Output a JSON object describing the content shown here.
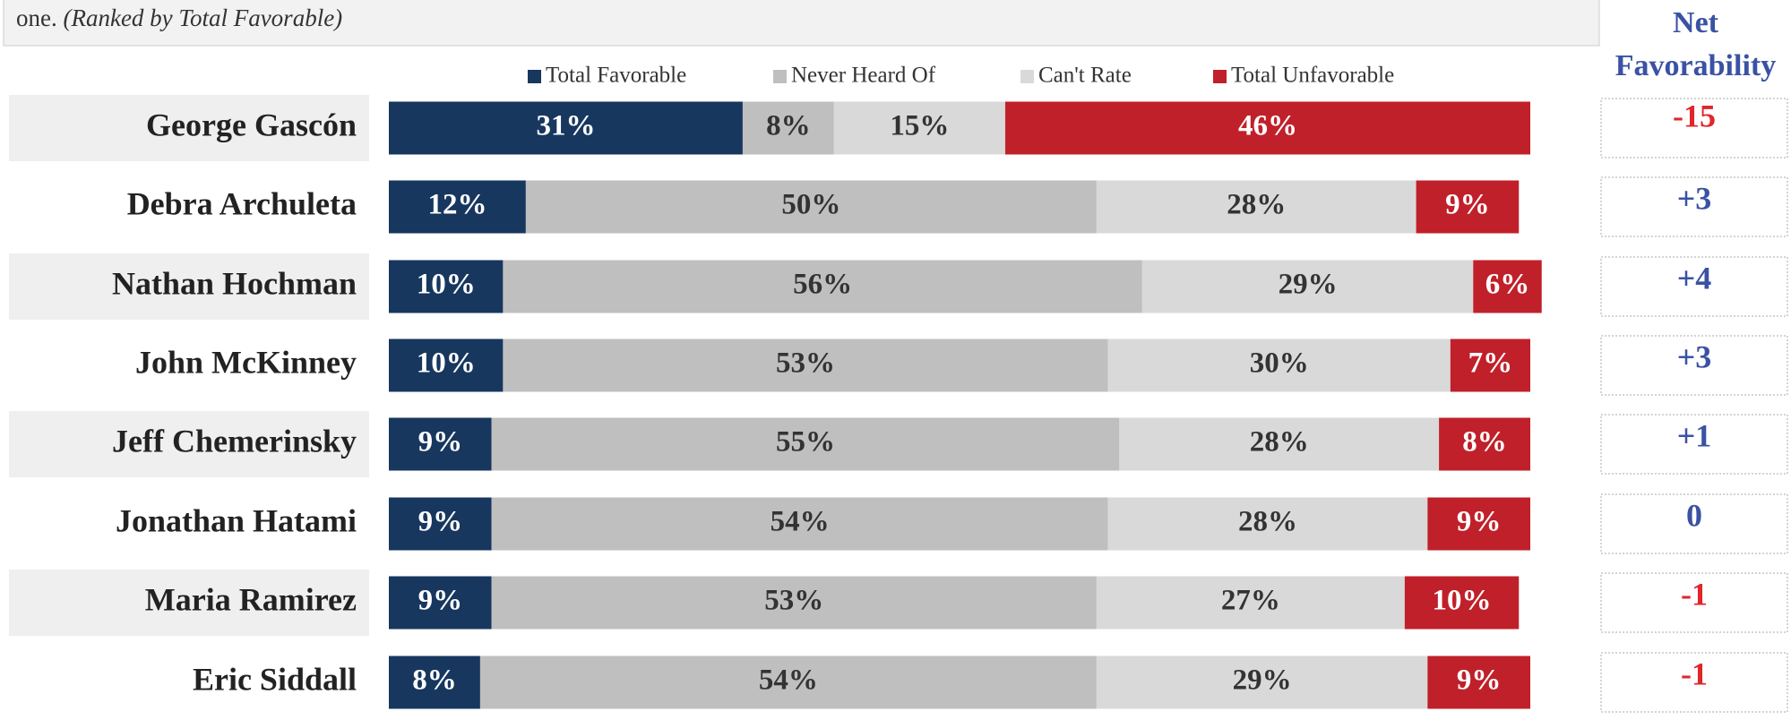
{
  "chart_data": {
    "type": "stacked_barh",
    "subtitle": "one.",
    "subtitle_note": "(Ranked by Total Favorable)",
    "categories": [
      "George Gascón",
      "Debra Archuleta",
      "Nathan Hochman",
      "John McKinney",
      "Jeff Chemerinsky",
      "Jonathan Hatami",
      "Maria Ramirez",
      "Eric Siddall"
    ],
    "xlim": [
      0,
      100
    ],
    "series": [
      {
        "name": "Total Favorable",
        "color": "#17375e",
        "label_color": "#ffffff",
        "values": [
          31,
          12,
          10,
          10,
          9,
          9,
          9,
          8
        ],
        "value_labels": [
          "31%",
          "12%",
          "10%",
          "10%",
          "9%",
          "9%",
          "9%",
          "8%"
        ]
      },
      {
        "name": "Never Heard Of",
        "color": "#bfbfbf",
        "label_color": "#333333",
        "values": [
          8,
          50,
          56,
          53,
          55,
          54,
          53,
          54
        ],
        "value_labels": [
          "8%",
          "50%",
          "56%",
          "53%",
          "55%",
          "54%",
          "53%",
          "54%"
        ]
      },
      {
        "name": "Can't Rate",
        "color": "#d9d9d9",
        "label_color": "#333333",
        "values": [
          15,
          28,
          29,
          30,
          28,
          28,
          27,
          29
        ],
        "value_labels": [
          "15%",
          "28%",
          "29%",
          "30%",
          "28%",
          "28%",
          "27%",
          "29%"
        ]
      },
      {
        "name": "Total Unfavorable",
        "color": "#c0202a",
        "label_color": "#ffffff",
        "values": [
          46,
          9,
          6,
          7,
          8,
          9,
          10,
          9
        ],
        "value_labels": [
          "46%",
          "9%",
          "6%",
          "7%",
          "8%",
          "9%",
          "10%",
          "9%"
        ]
      }
    ],
    "net": {
      "title": "Net Favorability",
      "values": [
        -15,
        3,
        4,
        3,
        1,
        0,
        -1,
        -1
      ],
      "value_labels": [
        "-15",
        "+3",
        "+4",
        "+3",
        "+1",
        "0",
        "-1",
        "-1"
      ],
      "colors": [
        "#e0262b",
        "#3a52a4",
        "#3a52a4",
        "#3a52a4",
        "#3a52a4",
        "#3a52a4",
        "#e0262b",
        "#e0262b"
      ]
    }
  }
}
